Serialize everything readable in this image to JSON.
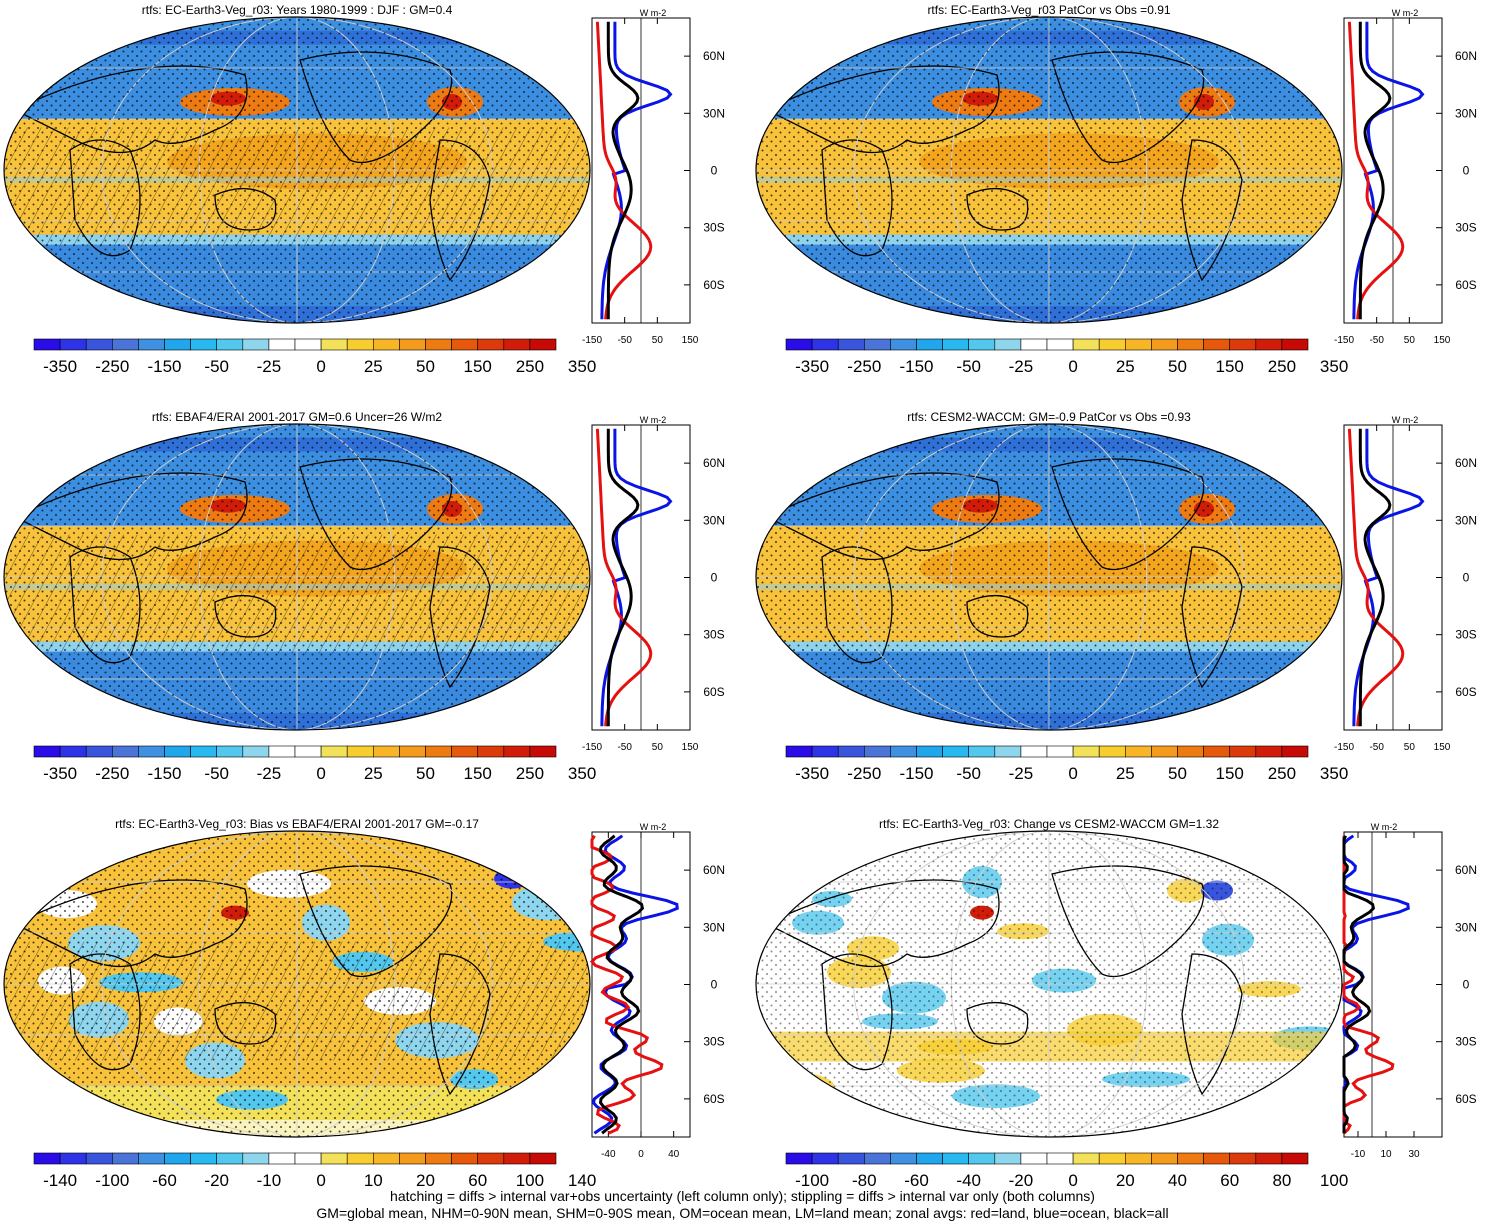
{
  "panels": [
    {
      "title": "rtfs: EC-Earth3-Veg_r03: Years 1980-1999 : DJF : GM=0.4",
      "map_style": "mean",
      "hatching": true,
      "colorbar_labels": [
        "-350",
        "-250",
        "-150",
        "-50",
        "-25",
        "0",
        "25",
        "50",
        "150",
        "250",
        "350"
      ],
      "zonal_unit": "W m-2",
      "zonal_ticks": [
        "-150",
        "-50",
        "50",
        "150"
      ],
      "zonal_range": [
        -150,
        150
      ],
      "lat_labels": [
        "60N",
        "30N",
        "0",
        "30S",
        "60S"
      ]
    },
    {
      "title": "rtfs: EC-Earth3-Veg_r03 PatCor vs Obs =0.91",
      "map_style": "mean",
      "hatching": false,
      "colorbar_labels": [
        "-350",
        "-250",
        "-150",
        "-50",
        "-25",
        "0",
        "25",
        "50",
        "150",
        "250",
        "350"
      ],
      "zonal_unit": "W m-2",
      "zonal_ticks": [
        "-150",
        "-50",
        "50",
        "150"
      ],
      "zonal_range": [
        -150,
        150
      ],
      "lat_labels": [
        "60N",
        "30N",
        "0",
        "30S",
        "60S"
      ]
    },
    {
      "title": "rtfs: EBAF4/ERAI 2001-2017 GM=0.6 Uncer=26 W/m2",
      "map_style": "mean",
      "hatching": true,
      "colorbar_labels": [
        "-350",
        "-250",
        "-150",
        "-50",
        "-25",
        "0",
        "25",
        "50",
        "150",
        "250",
        "350"
      ],
      "zonal_unit": "W m-2",
      "zonal_ticks": [
        "-150",
        "-50",
        "50",
        "150"
      ],
      "zonal_range": [
        -150,
        150
      ],
      "lat_labels": [
        "60N",
        "30N",
        "0",
        "30S",
        "60S"
      ]
    },
    {
      "title": "rtfs: CESM2-WACCM: GM=-0.9 PatCor vs Obs =0.93",
      "map_style": "mean",
      "hatching": false,
      "colorbar_labels": [
        "-350",
        "-250",
        "-150",
        "-50",
        "-25",
        "0",
        "25",
        "50",
        "150",
        "250",
        "350"
      ],
      "zonal_unit": "W m-2",
      "zonal_ticks": [
        "-150",
        "-50",
        "50",
        "150"
      ],
      "zonal_range": [
        -150,
        150
      ],
      "lat_labels": [
        "60N",
        "30N",
        "0",
        "30S",
        "60S"
      ]
    },
    {
      "title": "rtfs: EC-Earth3-Veg_r03: Bias vs EBAF4/ERAI 2001-2017 GM=-0.17",
      "map_style": "bias",
      "hatching": true,
      "colorbar_labels": [
        "-140",
        "-100",
        "-60",
        "-20",
        "-10",
        "0",
        "10",
        "20",
        "60",
        "100",
        "140"
      ],
      "zonal_unit": "W m-2",
      "zonal_ticks": [
        "-40",
        "0",
        "40"
      ],
      "zonal_range": [
        -60,
        60
      ],
      "lat_labels": [
        "60N",
        "30N",
        "0",
        "30S",
        "60S"
      ]
    },
    {
      "title": "rtfs: EC-Earth3-Veg_r03: Change vs CESM2-WACCM GM=1.32",
      "map_style": "change",
      "hatching": false,
      "colorbar_labels": [
        "-100",
        "-80",
        "-60",
        "-40",
        "-20",
        "0",
        "20",
        "40",
        "60",
        "80",
        "100"
      ],
      "zonal_unit": "W m-2",
      "zonal_ticks": [
        "-10",
        "10",
        "30"
      ],
      "zonal_range": [
        -20,
        50
      ],
      "lat_labels": [
        "60N",
        "30N",
        "0",
        "30S",
        "60S"
      ]
    }
  ],
  "colorbar_colors": [
    "#2a0ce8",
    "#2f33e8",
    "#3a55dd",
    "#4b74d8",
    "#3f8fe2",
    "#1fa6ec",
    "#27b9f0",
    "#53c8ee",
    "#8ed6ee",
    "#ffffff",
    "#ffffff",
    "#f4e15a",
    "#f7cd2f",
    "#f8b627",
    "#f49a1c",
    "#ee7a12",
    "#e6590c",
    "#dc3a0a",
    "#d01c08",
    "#c80a06"
  ],
  "footer": {
    "line1": "hatching = diffs > internal var+obs uncertainty (left column only); stippling = diffs > internal var only (both columns)",
    "line2": "GM=global mean, NHM=0-90N mean, SHM=0-90S mean, OM=ocean mean, LM=land mean; zonal avgs: red=land, blue=ocean, black=all"
  }
}
